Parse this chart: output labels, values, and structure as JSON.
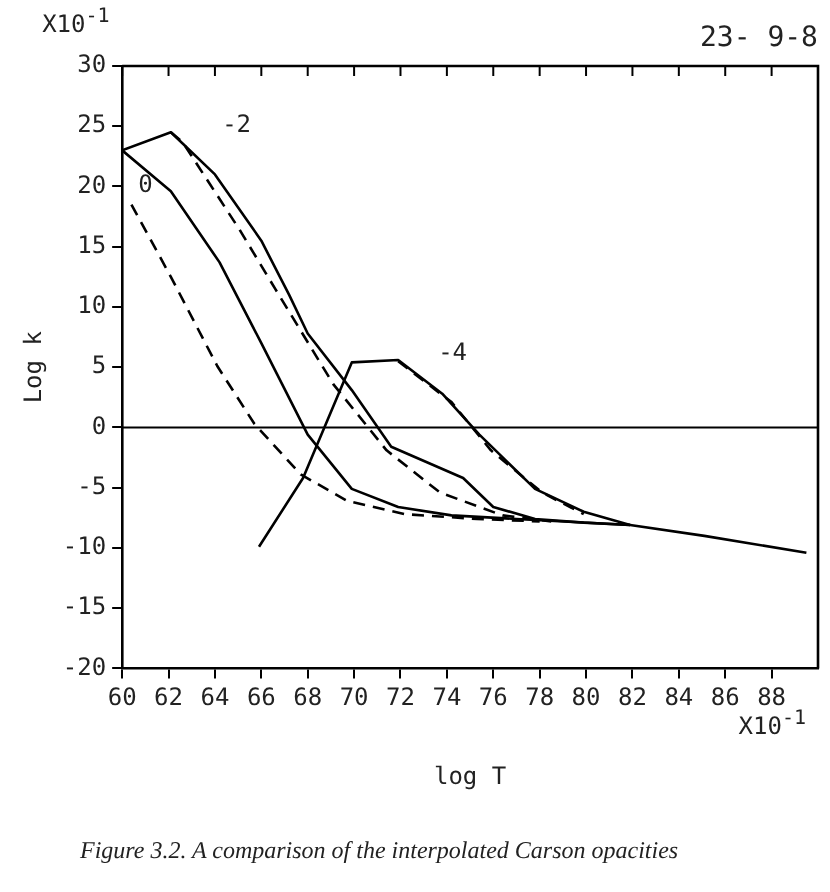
{
  "chart_data": {
    "type": "line",
    "xlabel": "log T",
    "ylabel": "Log k",
    "xlim": [
      60,
      90
    ],
    "ylim": [
      -20,
      30
    ],
    "xticks": [
      60,
      62,
      64,
      66,
      68,
      70,
      72,
      74,
      76,
      78,
      80,
      82,
      84,
      86,
      88
    ],
    "yticks": [
      -20,
      -15,
      -10,
      -5,
      0,
      5,
      10,
      15,
      20,
      25,
      30
    ],
    "grid": false,
    "legend": false,
    "marker": "none",
    "series": [
      {
        "color": "#000000",
        "line_style": "solid",
        "x": [
          60,
          62.1,
          64.2,
          66,
          68,
          69.9,
          71.9,
          74.2,
          77,
          81.9,
          85.1,
          89.5
        ],
        "values": [
          23,
          19.6,
          13.7,
          7,
          -0.6,
          -5.1,
          -6.6,
          -7.3,
          -7.6,
          -8.1,
          -9,
          -10.4
        ]
      },
      {
        "color": "#000000",
        "line_style": "solid",
        "x": [
          60,
          62.1,
          64,
          66,
          67.2,
          68,
          69.9,
          71.6,
          74.7,
          76,
          77.8,
          79.9,
          81.9
        ],
        "values": [
          23,
          24.5,
          21,
          15.5,
          11,
          7.8,
          3.1,
          -1.6,
          -4.2,
          -6.6,
          -7.6,
          -7.9,
          -8.1
        ]
      },
      {
        "color": "#000000",
        "line_style": "solid",
        "x": [
          65.9,
          67.8,
          69.9,
          71.9,
          73.8,
          75.4,
          77.8,
          79.9,
          81.9
        ],
        "values": [
          -9.9,
          -4.2,
          5.4,
          5.6,
          2.8,
          -0.6,
          -5.1,
          -7,
          -8.1
        ]
      },
      {
        "color": "#000000",
        "line_style": "dashed",
        "x": [
          60.4,
          62.1,
          64.1,
          65.7,
          67.7,
          69.7,
          72.2,
          75.3,
          78
        ],
        "values": [
          18.5,
          12.5,
          5.1,
          0.3,
          -3.9,
          -6.1,
          -7.2,
          -7.6,
          -7.8
        ]
      },
      {
        "color": "#000000",
        "line_style": "dashed",
        "x": [
          62.1,
          62.6,
          65.1,
          66.6,
          69.1,
          71.4,
          73.7,
          76.4,
          78.5
        ],
        "values": [
          24.5,
          23.7,
          16.3,
          11.5,
          3.6,
          -1.9,
          -5.4,
          -7.3,
          -7.8
        ]
      },
      {
        "color": "#000000",
        "line_style": "dashed",
        "x": [
          71.9,
          74.2,
          75.9,
          78.1,
          79.9
        ],
        "values": [
          5.5,
          2.1,
          -1.9,
          -5.4,
          -7.2
        ]
      }
    ],
    "ref_lines": [
      {
        "axis": "y",
        "value": 0
      }
    ],
    "annotations": [
      "23- 9-8",
      "X10$^{-1}$",
      "X10$^{-1}$",
      "Figure 3.2.  A comparison of the interpolated Carson opacities",
      "0",
      "-2",
      "-4"
    ]
  }
}
